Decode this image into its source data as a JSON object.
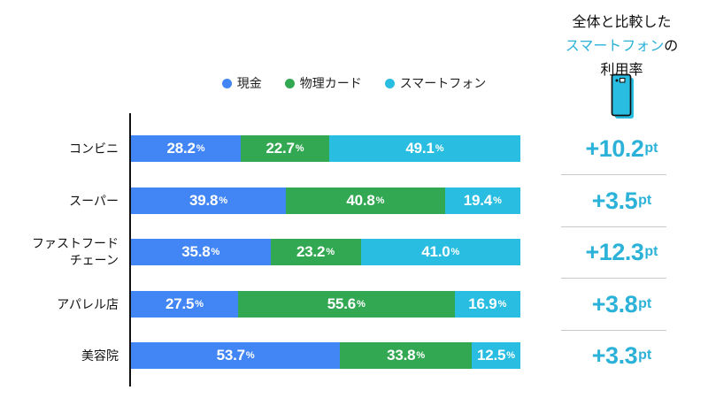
{
  "colors": {
    "cash_blue": "#4285f4",
    "card_green": "#33a852",
    "smartphone_cyan": "#29bde1",
    "accent_text": "#2cb2d8",
    "separator": "#c9c9c9",
    "axis": "#111111"
  },
  "legend": {
    "items": [
      {
        "label": "現金",
        "color": "#4285f4"
      },
      {
        "label": "物理カード",
        "color": "#33a852"
      },
      {
        "label": "スマートフォン",
        "color": "#29bde1"
      }
    ]
  },
  "right_panel": {
    "title": {
      "line1": "全体と比較した",
      "line2_highlight": "スマートフォン",
      "line2_suffix": "の",
      "line3": "利用率"
    },
    "icon": "smartphone-icon",
    "unit": "pt",
    "values": [
      "+10.2",
      "+3.5",
      "+12.3",
      "+3.8",
      "+3.3"
    ]
  },
  "chart_data": {
    "type": "bar",
    "orientation": "horizontal",
    "stacked": true,
    "grid": false,
    "legend_position": "top",
    "xlim": [
      0,
      100
    ],
    "value_suffix": "%",
    "categories": [
      "コンビニ",
      "スーパー",
      "ファストフード\nチェーン",
      "アパレル店",
      "美容院"
    ],
    "series": [
      {
        "name": "現金",
        "color": "#4285f4",
        "values": [
          28.2,
          39.8,
          35.8,
          27.5,
          53.7
        ]
      },
      {
        "name": "物理カード",
        "color": "#33a852",
        "values": [
          22.7,
          40.8,
          23.2,
          55.6,
          33.8
        ]
      },
      {
        "name": "スマートフォン",
        "color": "#29bde1",
        "values": [
          49.1,
          19.4,
          41.0,
          16.9,
          12.5
        ]
      }
    ],
    "annotations": {
      "label": "全体と比較したスマートフォンの利用率",
      "smartphone_diff_vs_overall_pt": [
        10.2,
        3.5,
        12.3,
        3.8,
        3.3
      ]
    }
  }
}
